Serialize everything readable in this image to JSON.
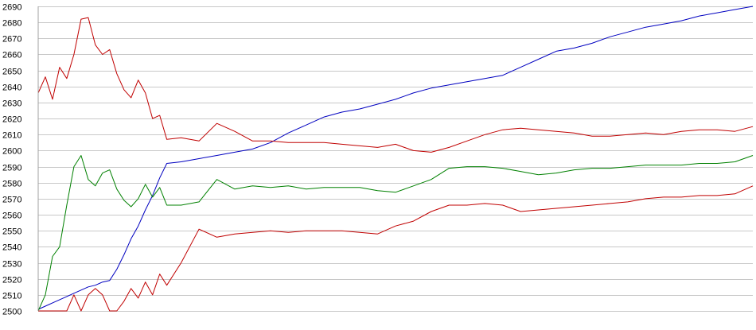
{
  "chart_data": {
    "type": "line",
    "title": "",
    "xlabel": "",
    "ylabel": "",
    "ylim": [
      2500,
      2690
    ],
    "yticks": [
      2500,
      2510,
      2520,
      2530,
      2540,
      2550,
      2560,
      2570,
      2580,
      2590,
      2600,
      2610,
      2620,
      2630,
      2640,
      2650,
      2660,
      2670,
      2680,
      2690
    ],
    "grid": true,
    "legend": "none",
    "x": [
      0,
      2,
      4,
      6,
      8,
      10,
      12,
      14,
      16,
      18,
      20,
      22,
      24,
      26,
      28,
      30,
      32,
      34,
      36,
      40,
      45,
      50,
      55,
      60,
      65,
      70,
      75,
      80,
      85,
      90,
      95,
      100,
      105,
      110,
      115,
      120,
      125,
      130,
      135,
      140,
      145,
      150,
      155,
      160,
      165,
      170,
      175,
      180,
      185,
      190,
      195,
      200
    ],
    "series": [
      {
        "color": "#0000c0",
        "values": [
          2501,
          2503,
          2505,
          2507,
          2509,
          2511,
          2513,
          2515,
          2516,
          2518,
          2519,
          2526,
          2535,
          2545,
          2553,
          2563,
          2572,
          2583,
          2592,
          2593,
          2595,
          2597,
          2599,
          2601,
          2605,
          2611,
          2616,
          2621,
          2624,
          2626,
          2629,
          2632,
          2636,
          2639,
          2641,
          2643,
          2645,
          2647,
          2652,
          2657,
          2662,
          2664,
          2667,
          2671,
          2674,
          2677,
          2679,
          2681,
          2684,
          2686,
          2688,
          2690
        ]
      },
      {
        "color": "#c00000",
        "values": [
          2636,
          2646,
          2632,
          2652,
          2645,
          2660,
          2682,
          2683,
          2666,
          2660,
          2663,
          2648,
          2638,
          2633,
          2644,
          2636,
          2620,
          2622,
          2607,
          2608,
          2606,
          2617,
          2612,
          2606,
          2606,
          2605,
          2605,
          2605,
          2604,
          2603,
          2602,
          2604,
          2600,
          2599,
          2602,
          2606,
          2610,
          2613,
          2614,
          2613,
          2612,
          2611,
          2609,
          2609,
          2610,
          2611,
          2610,
          2612,
          2613,
          2613,
          2612,
          2615
        ]
      },
      {
        "color": "#008000",
        "values": [
          2500,
          2510,
          2534,
          2540,
          2566,
          2590,
          2597,
          2582,
          2578,
          2586,
          2588,
          2576,
          2569,
          2565,
          2570,
          2579,
          2571,
          2577,
          2566,
          2566,
          2568,
          2582,
          2576,
          2578,
          2577,
          2578,
          2576,
          2577,
          2577,
          2577,
          2575,
          2574,
          2578,
          2582,
          2589,
          2590,
          2590,
          2589,
          2587,
          2585,
          2586,
          2588,
          2589,
          2589,
          2590,
          2591,
          2591,
          2591,
          2592,
          2592,
          2593,
          2597
        ]
      },
      {
        "color": "#c00000",
        "values": [
          2500,
          2500,
          2500,
          2500,
          2500,
          2510,
          2500,
          2510,
          2514,
          2510,
          2500,
          2500,
          2506,
          2514,
          2508,
          2518,
          2510,
          2523,
          2516,
          2530,
          2551,
          2546,
          2548,
          2549,
          2550,
          2549,
          2550,
          2550,
          2550,
          2549,
          2548,
          2553,
          2556,
          2562,
          2566,
          2566,
          2567,
          2566,
          2562,
          2563,
          2564,
          2565,
          2566,
          2567,
          2568,
          2570,
          2571,
          2571,
          2572,
          2572,
          2573,
          2578
        ]
      }
    ]
  }
}
